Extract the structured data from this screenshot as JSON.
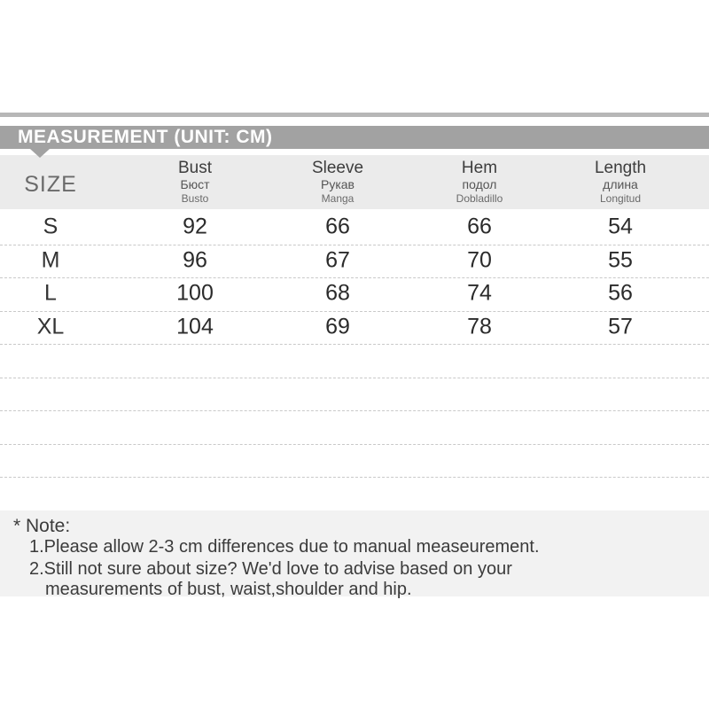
{
  "title_bar": {
    "text": "MEASUREMENT (UNIT: CM)"
  },
  "table": {
    "size_header": "SIZE",
    "columns": [
      {
        "en": "Bust",
        "ru": "Бюст",
        "es": "Busto"
      },
      {
        "en": "Sleeve",
        "ru": "Рукав",
        "es": "Manga"
      },
      {
        "en": "Hem",
        "ru": "подол",
        "es": "Dobladillo"
      },
      {
        "en": "Length",
        "ru": "длина",
        "es": "Longitud"
      }
    ],
    "rows": [
      {
        "size": "S",
        "values": [
          "92",
          "66",
          "66",
          "54"
        ]
      },
      {
        "size": "M",
        "values": [
          "96",
          "67",
          "70",
          "55"
        ]
      },
      {
        "size": "L",
        "values": [
          "100",
          "68",
          "74",
          "56"
        ]
      },
      {
        "size": "XL",
        "values": [
          "104",
          "69",
          "78",
          "57"
        ]
      }
    ],
    "empty_row_count": 4
  },
  "note": {
    "heading": "* Note:",
    "lines": [
      "1.Please allow 2-3 cm differences due to manual measeurement.",
      "2.Still not sure about size? We'd love to advise based on your",
      "measurements of bust, waist,shoulder and hip."
    ]
  },
  "colors": {
    "ribbon_gray": "#a2a2a2",
    "top_rule_gray": "#b7b7b7",
    "header_band_gray": "#ebebeb",
    "note_band_gray": "#f2f2f2",
    "dashed_line_gray": "#c9c9c9",
    "text_dark": "#2b2b2b",
    "title_text": "#ffffff"
  },
  "chart_data": {
    "type": "table",
    "title": "MEASUREMENT (UNIT: CM)",
    "unit": "cm",
    "row_labels": [
      "S",
      "M",
      "L",
      "XL"
    ],
    "columns": [
      "Bust",
      "Sleeve",
      "Hem",
      "Length"
    ],
    "series": [
      {
        "name": "Bust",
        "values": [
          92,
          96,
          100,
          104
        ]
      },
      {
        "name": "Sleeve",
        "values": [
          66,
          67,
          68,
          69
        ]
      },
      {
        "name": "Hem",
        "values": [
          66,
          70,
          74,
          78
        ]
      },
      {
        "name": "Length",
        "values": [
          54,
          55,
          56,
          57
        ]
      }
    ]
  }
}
